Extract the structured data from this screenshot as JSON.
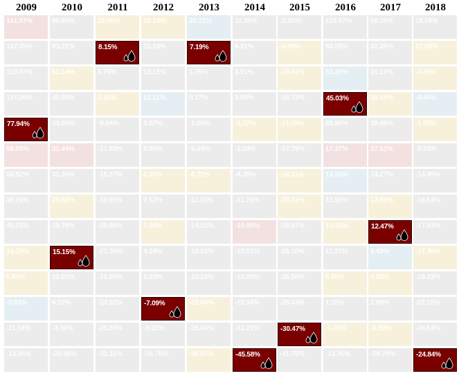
{
  "chart_data": {
    "type": "table",
    "title": "",
    "highlight_color": "#7a0000",
    "dim_palette": {
      "gray": "#ececec",
      "pink": "#f3e1e1",
      "yellow": "#f7f1dc",
      "blue": "#e4eef3",
      "green": "#e9efe3",
      "tan": "#f1ebe2",
      "lavender": "#ebe9f2"
    },
    "years": [
      "2009",
      "2010",
      "2011",
      "2012",
      "2013",
      "2014",
      "2015",
      "2016",
      "2017",
      "2018"
    ],
    "columns": [
      {
        "year": "2009",
        "cells": [
          {
            "value": "141.57%",
            "tint": "pink",
            "hl": false
          },
          {
            "value": "137.35%",
            "tint": "gray",
            "hl": false
          },
          {
            "value": "118.07%",
            "tint": "gray",
            "hl": false
          },
          {
            "value": "114.26%",
            "tint": "gray",
            "hl": false
          },
          {
            "value": "77.94%",
            "tint": "gray",
            "hl": true
          },
          {
            "value": "59.95%",
            "tint": "pink",
            "hl": false
          },
          {
            "value": "56.82%",
            "tint": "gray",
            "hl": false
          },
          {
            "value": "48.19%",
            "tint": "gray",
            "hl": false
          },
          {
            "value": "45.71%",
            "tint": "gray",
            "hl": false
          },
          {
            "value": "34.39%",
            "tint": "yellow",
            "hl": false
          },
          {
            "value": "5.84%",
            "tint": "yellow",
            "hl": false
          },
          {
            "value": "-0.83%",
            "tint": "blue",
            "hl": false
          },
          {
            "value": "-11.34%",
            "tint": "gray",
            "hl": false
          },
          {
            "value": "-13.36%",
            "tint": "gray",
            "hl": false
          }
        ]
      },
      {
        "year": "2010",
        "cells": [
          {
            "value": "96.60%",
            "tint": "gray",
            "hl": false
          },
          {
            "value": "83.21%",
            "tint": "gray",
            "hl": false
          },
          {
            "value": "51.14%",
            "tint": "yellow",
            "hl": false
          },
          {
            "value": "46.58%",
            "tint": "gray",
            "hl": false
          },
          {
            "value": "33.90%",
            "tint": "gray",
            "hl": false
          },
          {
            "value": "31.44%",
            "tint": "pink",
            "hl": false
          },
          {
            "value": "31.39%",
            "tint": "gray",
            "hl": false
          },
          {
            "value": "29.52%",
            "tint": "yellow",
            "hl": false
          },
          {
            "value": "20.79%",
            "tint": "gray",
            "hl": false
          },
          {
            "value": "15.15%",
            "tint": "gray",
            "hl": true
          },
          {
            "value": "12.01%",
            "tint": "gray",
            "hl": false
          },
          {
            "value": "6.72%",
            "tint": "gray",
            "hl": false
          },
          {
            "value": "-3.36%",
            "tint": "gray",
            "hl": false
          },
          {
            "value": "-20.96%",
            "tint": "gray",
            "hl": false
          }
        ]
      },
      {
        "year": "2011",
        "cells": [
          {
            "value": "10.00%",
            "tint": "yellow",
            "hl": false
          },
          {
            "value": "8.15%",
            "tint": "gray",
            "hl": true
          },
          {
            "value": "5.76%",
            "tint": "gray",
            "hl": false
          },
          {
            "value": "2.31%",
            "tint": "yellow",
            "hl": false
          },
          {
            "value": "-9.84%",
            "tint": "gray",
            "hl": false
          },
          {
            "value": "-17.83%",
            "tint": "gray",
            "hl": false
          },
          {
            "value": "-18.27%",
            "tint": "gray",
            "hl": false
          },
          {
            "value": "-18.95%",
            "tint": "gray",
            "hl": false
          },
          {
            "value": "-20.86%",
            "tint": "gray",
            "hl": false
          },
          {
            "value": "-21.35%",
            "tint": "gray",
            "hl": false
          },
          {
            "value": "-21.55%",
            "tint": "gray",
            "hl": false
          },
          {
            "value": "-24.22%",
            "tint": "gray",
            "hl": false
          },
          {
            "value": "-25.24%",
            "tint": "gray",
            "hl": false
          },
          {
            "value": "-32.15%",
            "tint": "gray",
            "hl": false
          }
        ]
      },
      {
        "year": "2012",
        "cells": [
          {
            "value": "19.19%",
            "tint": "yellow",
            "hl": false
          },
          {
            "value": "15.19%",
            "tint": "gray",
            "hl": false
          },
          {
            "value": "12.15%",
            "tint": "gray",
            "hl": false
          },
          {
            "value": "12.11%",
            "tint": "blue",
            "hl": false
          },
          {
            "value": "9.87%",
            "tint": "gray",
            "hl": false
          },
          {
            "value": "8.89%",
            "tint": "gray",
            "hl": false
          },
          {
            "value": "8.33%",
            "tint": "yellow",
            "hl": false
          },
          {
            "value": "7.52%",
            "tint": "gray",
            "hl": false
          },
          {
            "value": "7.14%",
            "tint": "yellow",
            "hl": false
          },
          {
            "value": "4.18%",
            "tint": "gray",
            "hl": false
          },
          {
            "value": "2.33%",
            "tint": "gray",
            "hl": false
          },
          {
            "value": "-7.09%",
            "tint": "gray",
            "hl": true
          },
          {
            "value": "-9.22%",
            "tint": "gray",
            "hl": false
          },
          {
            "value": "-16.78%",
            "tint": "gray",
            "hl": false
          }
        ]
      },
      {
        "year": "2013",
        "cells": [
          {
            "value": "20.22%",
            "tint": "blue",
            "hl": false
          },
          {
            "value": "7.19%",
            "tint": "gray",
            "hl": true
          },
          {
            "value": "1.76%",
            "tint": "gray",
            "hl": false
          },
          {
            "value": "0.17%",
            "tint": "gray",
            "hl": false
          },
          {
            "value": "-1.00%",
            "tint": "gray",
            "hl": false
          },
          {
            "value": "-5.44%",
            "tint": "gray",
            "hl": false
          },
          {
            "value": "-6.72%",
            "tint": "yellow",
            "hl": false
          },
          {
            "value": "-11.03%",
            "tint": "gray",
            "hl": false
          },
          {
            "value": "-14.02%",
            "tint": "gray",
            "hl": false
          },
          {
            "value": "-18.63%",
            "tint": "gray",
            "hl": false
          },
          {
            "value": "-23.20%",
            "tint": "gray",
            "hl": false
          },
          {
            "value": "-28.04%",
            "tint": "yellow",
            "hl": false
          },
          {
            "value": "-28.04%",
            "tint": "gray",
            "hl": false
          },
          {
            "value": "-35.97%",
            "tint": "yellow",
            "hl": false
          }
        ]
      },
      {
        "year": "2014",
        "cells": [
          {
            "value": "11.35%",
            "tint": "gray",
            "hl": false
          },
          {
            "value": "6.91%",
            "tint": "gray",
            "hl": false
          },
          {
            "value": "3.91%",
            "tint": "gray",
            "hl": false
          },
          {
            "value": "3.80%",
            "tint": "gray",
            "hl": false
          },
          {
            "value": "-1.72%",
            "tint": "yellow",
            "hl": false
          },
          {
            "value": "-2.24%",
            "tint": "gray",
            "hl": false
          },
          {
            "value": "-4.38%",
            "tint": "gray",
            "hl": false
          },
          {
            "value": "-11.79%",
            "tint": "gray",
            "hl": false
          },
          {
            "value": "-14.00%",
            "tint": "pink",
            "hl": false
          },
          {
            "value": "-15.51%",
            "tint": "gray",
            "hl": false
          },
          {
            "value": "-16.00%",
            "tint": "gray",
            "hl": false
          },
          {
            "value": "-19.34%",
            "tint": "gray",
            "hl": false
          },
          {
            "value": "-31.21%",
            "tint": "gray",
            "hl": false
          },
          {
            "value": "-45.58%",
            "tint": "gray",
            "hl": true
          }
        ]
      },
      {
        "year": "2015",
        "cells": [
          {
            "value": "-2.50%",
            "tint": "gray",
            "hl": false
          },
          {
            "value": "-5.99%",
            "tint": "yellow",
            "hl": false
          },
          {
            "value": "-10.42%",
            "tint": "yellow",
            "hl": false
          },
          {
            "value": "-10.72%",
            "tint": "gray",
            "hl": false
          },
          {
            "value": "-11.79%",
            "tint": "yellow",
            "hl": false
          },
          {
            "value": "-17.79%",
            "tint": "gray",
            "hl": false
          },
          {
            "value": "-19.11%",
            "tint": "yellow",
            "hl": false
          },
          {
            "value": "-20.31%",
            "tint": "yellow",
            "hl": false
          },
          {
            "value": "-26.07%",
            "tint": "gray",
            "hl": false
          },
          {
            "value": "-26.10%",
            "tint": "gray",
            "hl": false
          },
          {
            "value": "-26.50%",
            "tint": "gray",
            "hl": false
          },
          {
            "value": "-29.43%",
            "tint": "gray",
            "hl": false
          },
          {
            "value": "-30.47%",
            "tint": "gray",
            "hl": true
          },
          {
            "value": "-41.75%",
            "tint": "gray",
            "hl": false
          }
        ]
      },
      {
        "year": "2016",
        "cells": [
          {
            "value": "103.67%",
            "tint": "gray",
            "hl": false
          },
          {
            "value": "60.59%",
            "tint": "gray",
            "hl": false
          },
          {
            "value": "53.35%",
            "tint": "blue",
            "hl": false
          },
          {
            "value": "45.03%",
            "tint": "gray",
            "hl": true
          },
          {
            "value": "20.96%",
            "tint": "gray",
            "hl": false
          },
          {
            "value": "17.37%",
            "tint": "pink",
            "hl": false
          },
          {
            "value": "14.59%",
            "tint": "blue",
            "hl": false
          },
          {
            "value": "13.58%",
            "tint": "gray",
            "hl": false
          },
          {
            "value": "13.48%",
            "tint": "yellow",
            "hl": false
          },
          {
            "value": "11.27%",
            "tint": "gray",
            "hl": false
          },
          {
            "value": "8.50%",
            "tint": "yellow",
            "hl": false
          },
          {
            "value": "1.16%",
            "tint": "gray",
            "hl": false
          },
          {
            "value": "-1.76%",
            "tint": "yellow",
            "hl": false
          },
          {
            "value": "-13.35%",
            "tint": "gray",
            "hl": false
          }
        ]
      },
      {
        "year": "2017",
        "cells": [
          {
            "value": "56.25%",
            "tint": "gray",
            "hl": false
          },
          {
            "value": "32.39%",
            "tint": "gray",
            "hl": false
          },
          {
            "value": "31.19%",
            "tint": "gray",
            "hl": false
          },
          {
            "value": "30.49%",
            "tint": "yellow",
            "hl": false
          },
          {
            "value": "30.49%",
            "tint": "gray",
            "hl": false
          },
          {
            "value": "27.51%",
            "tint": "pink",
            "hl": false
          },
          {
            "value": "24.27%",
            "tint": "gray",
            "hl": false
          },
          {
            "value": "13.89%",
            "tint": "yellow",
            "hl": false
          },
          {
            "value": "12.47%",
            "tint": "gray",
            "hl": true
          },
          {
            "value": "6.43%",
            "tint": "blue",
            "hl": false
          },
          {
            "value": "4.83%",
            "tint": "yellow",
            "hl": false
          },
          {
            "value": "2.99%",
            "tint": "gray",
            "hl": false
          },
          {
            "value": "-0.59%",
            "tint": "yellow",
            "hl": false
          },
          {
            "value": "-26.79%",
            "tint": "gray",
            "hl": false
          }
        ]
      },
      {
        "year": "2018",
        "cells": [
          {
            "value": "18.59%",
            "tint": "gray",
            "hl": false
          },
          {
            "value": "17.88%",
            "tint": "yellow",
            "hl": false
          },
          {
            "value": "-4.85%",
            "tint": "yellow",
            "hl": false
          },
          {
            "value": "-8.44%",
            "tint": "blue",
            "hl": false
          },
          {
            "value": "-1.58%",
            "tint": "yellow",
            "hl": false
          },
          {
            "value": "-8.53%",
            "tint": "gray",
            "hl": false
          },
          {
            "value": "-14.49%",
            "tint": "gray",
            "hl": false
          },
          {
            "value": "-16.54%",
            "tint": "gray",
            "hl": false
          },
          {
            "value": "-17.43%",
            "tint": "gray",
            "hl": false
          },
          {
            "value": "-17.46%",
            "tint": "yellow",
            "hl": false
          },
          {
            "value": "-19.23%",
            "tint": "gray",
            "hl": false
          },
          {
            "value": "-22.16%",
            "tint": "gray",
            "hl": false
          },
          {
            "value": "-24.54%",
            "tint": "gray",
            "hl": false
          },
          {
            "value": "-24.84%",
            "tint": "gray",
            "hl": true
          }
        ]
      }
    ]
  }
}
